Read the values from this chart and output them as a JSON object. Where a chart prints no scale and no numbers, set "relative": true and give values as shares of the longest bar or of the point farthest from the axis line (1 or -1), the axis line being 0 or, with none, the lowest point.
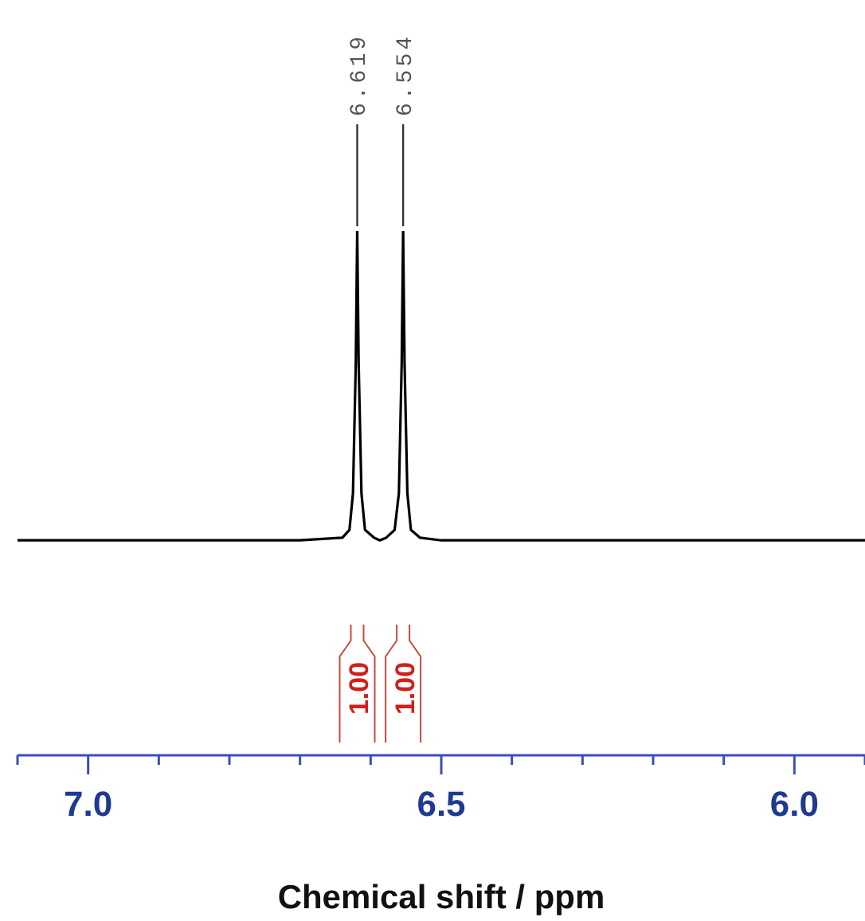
{
  "chart_data": {
    "type": "line",
    "relative": true,
    "xlabel": "Chemical shift / ppm",
    "xlim": [
      7.1,
      5.9
    ],
    "xticks": [
      {
        "value": 7.1,
        "label": null
      },
      {
        "value": 7,
        "label": "7.0"
      },
      {
        "value": 6.9,
        "label": null
      },
      {
        "value": 6.8,
        "label": null
      },
      {
        "value": 6.7,
        "label": null
      },
      {
        "value": 6.6,
        "label": null
      },
      6.5,
      {
        "value": 6.4,
        "label": null
      },
      {
        "value": 6.3,
        "label": null
      },
      {
        "value": 6.2,
        "label": null
      },
      {
        "value": 6.1,
        "label": null
      },
      {
        "value": 6,
        "label": "6.0"
      },
      {
        "value": 5.9,
        "label": null
      }
    ],
    "tick_labels": "x",
    "grid": false,
    "legend": false,
    "marker": "none",
    "line_style": "solid",
    "series": [
      {
        "color": "#000000",
        "x": [
          7.1,
          6.9,
          6.7,
          6.64,
          6.63,
          6.625,
          6.621,
          6.619,
          6.617,
          6.613,
          6.608,
          6.595,
          6.587,
          6.578,
          6.566,
          6.56,
          6.556,
          6.554,
          6.552,
          6.548,
          6.543,
          6.53,
          6.5,
          6.3,
          6.1,
          5.9
        ],
        "values": [
          0.41,
          0.41,
          0.41,
          0.415,
          0.43,
          0.5,
          0.75,
          1,
          0.75,
          0.5,
          0.43,
          0.415,
          0.41,
          0.415,
          0.43,
          0.5,
          0.75,
          1,
          0.75,
          0.5,
          0.43,
          0.415,
          0.41,
          0.41,
          0.41,
          0.41
        ]
      }
    ],
    "annotations": [
      {
        "text": "6.619",
        "x": 6.619,
        "y": 1
      },
      {
        "text": "6.554",
        "x": 6.554,
        "y": 1
      },
      "1.00",
      "1.00"
    ]
  }
}
